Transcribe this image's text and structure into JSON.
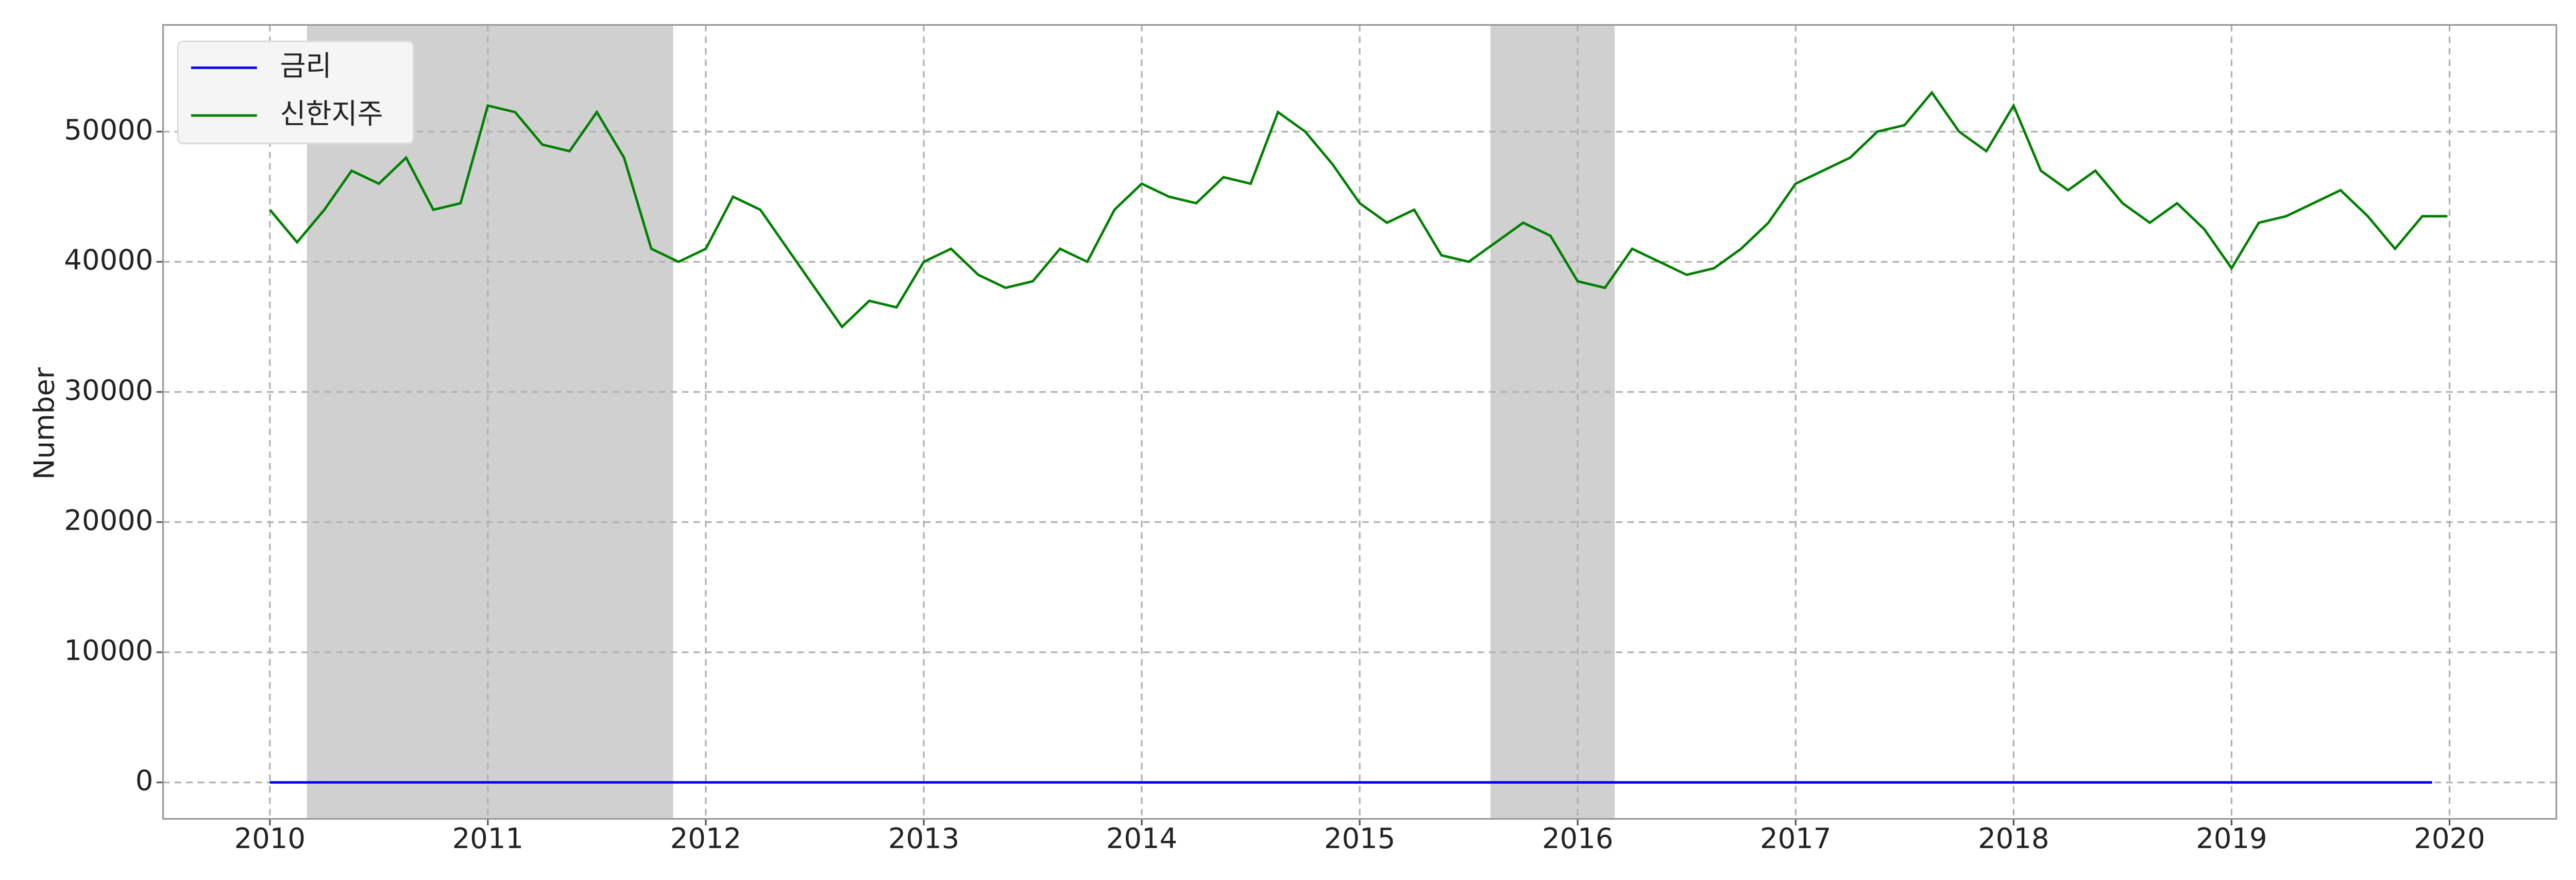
{
  "chart_data": {
    "type": "line",
    "y_label": "Number",
    "xlim": [
      2009.51,
      2020.49
    ],
    "ylim": [
      -2800,
      58200
    ],
    "xticks": [
      2010,
      2011,
      2012,
      2013,
      2014,
      2015,
      2016,
      2017,
      2018,
      2019,
      2020
    ],
    "yticks": [
      0,
      10000,
      20000,
      30000,
      40000,
      50000
    ],
    "grid": true,
    "legend": "upper-left",
    "shaded_spans": [
      [
        2010.17,
        2011.85
      ],
      [
        2015.6,
        2016.17
      ]
    ],
    "shade_color": "#d0d0d0",
    "series": [
      {
        "name": "금리",
        "color": "#0000ff",
        "x": [
          2010,
          2011,
          2012,
          2013,
          2014,
          2015,
          2016,
          2017,
          2018,
          2019,
          2019.92
        ],
        "values": [
          2.0,
          2.75,
          3.25,
          2.75,
          2.5,
          2.0,
          1.5,
          1.25,
          1.5,
          1.75,
          1.25
        ]
      },
      {
        "name": "신한지주",
        "color": "#008000",
        "x": [
          2010,
          2010.125,
          2010.25,
          2010.375,
          2010.5,
          2010.625,
          2010.75,
          2010.875,
          2011,
          2011.125,
          2011.25,
          2011.375,
          2011.5,
          2011.625,
          2011.75,
          2011.875,
          2012,
          2012.125,
          2012.25,
          2012.375,
          2012.5,
          2012.625,
          2012.75,
          2012.875,
          2013,
          2013.125,
          2013.25,
          2013.375,
          2013.5,
          2013.625,
          2013.75,
          2013.875,
          2014,
          2014.125,
          2014.25,
          2014.375,
          2014.5,
          2014.625,
          2014.75,
          2014.875,
          2015,
          2015.125,
          2015.25,
          2015.375,
          2015.5,
          2015.625,
          2015.75,
          2015.875,
          2016,
          2016.125,
          2016.25,
          2016.375,
          2016.5,
          2016.625,
          2016.75,
          2016.875,
          2017,
          2017.125,
          2017.25,
          2017.375,
          2017.5,
          2017.625,
          2017.75,
          2017.875,
          2018,
          2018.125,
          2018.25,
          2018.375,
          2018.5,
          2018.625,
          2018.75,
          2018.875,
          2019,
          2019.125,
          2019.25,
          2019.375,
          2019.5,
          2019.625,
          2019.75,
          2019.875,
          2019.99
        ],
        "values": [
          44000,
          41500,
          44000,
          47000,
          46000,
          48000,
          44000,
          44500,
          52000,
          51500,
          49000,
          48500,
          51500,
          48000,
          41000,
          40000,
          41000,
          45000,
          44000,
          41000,
          38000,
          35000,
          37000,
          36500,
          40000,
          41000,
          39000,
          38000,
          38500,
          41000,
          40000,
          44000,
          46000,
          45000,
          44500,
          46500,
          46000,
          51500,
          50000,
          47500,
          44500,
          43000,
          44000,
          40500,
          40000,
          41500,
          43000,
          42000,
          38500,
          38000,
          41000,
          40000,
          39000,
          39500,
          41000,
          43000,
          46000,
          47000,
          48000,
          50000,
          50500,
          53000,
          50000,
          48500,
          52000,
          47000,
          45500,
          47000,
          44500,
          43000,
          44500,
          42500,
          39500,
          43000,
          43500,
          44500,
          45500,
          43500,
          41000,
          43500,
          43500
        ]
      }
    ]
  }
}
